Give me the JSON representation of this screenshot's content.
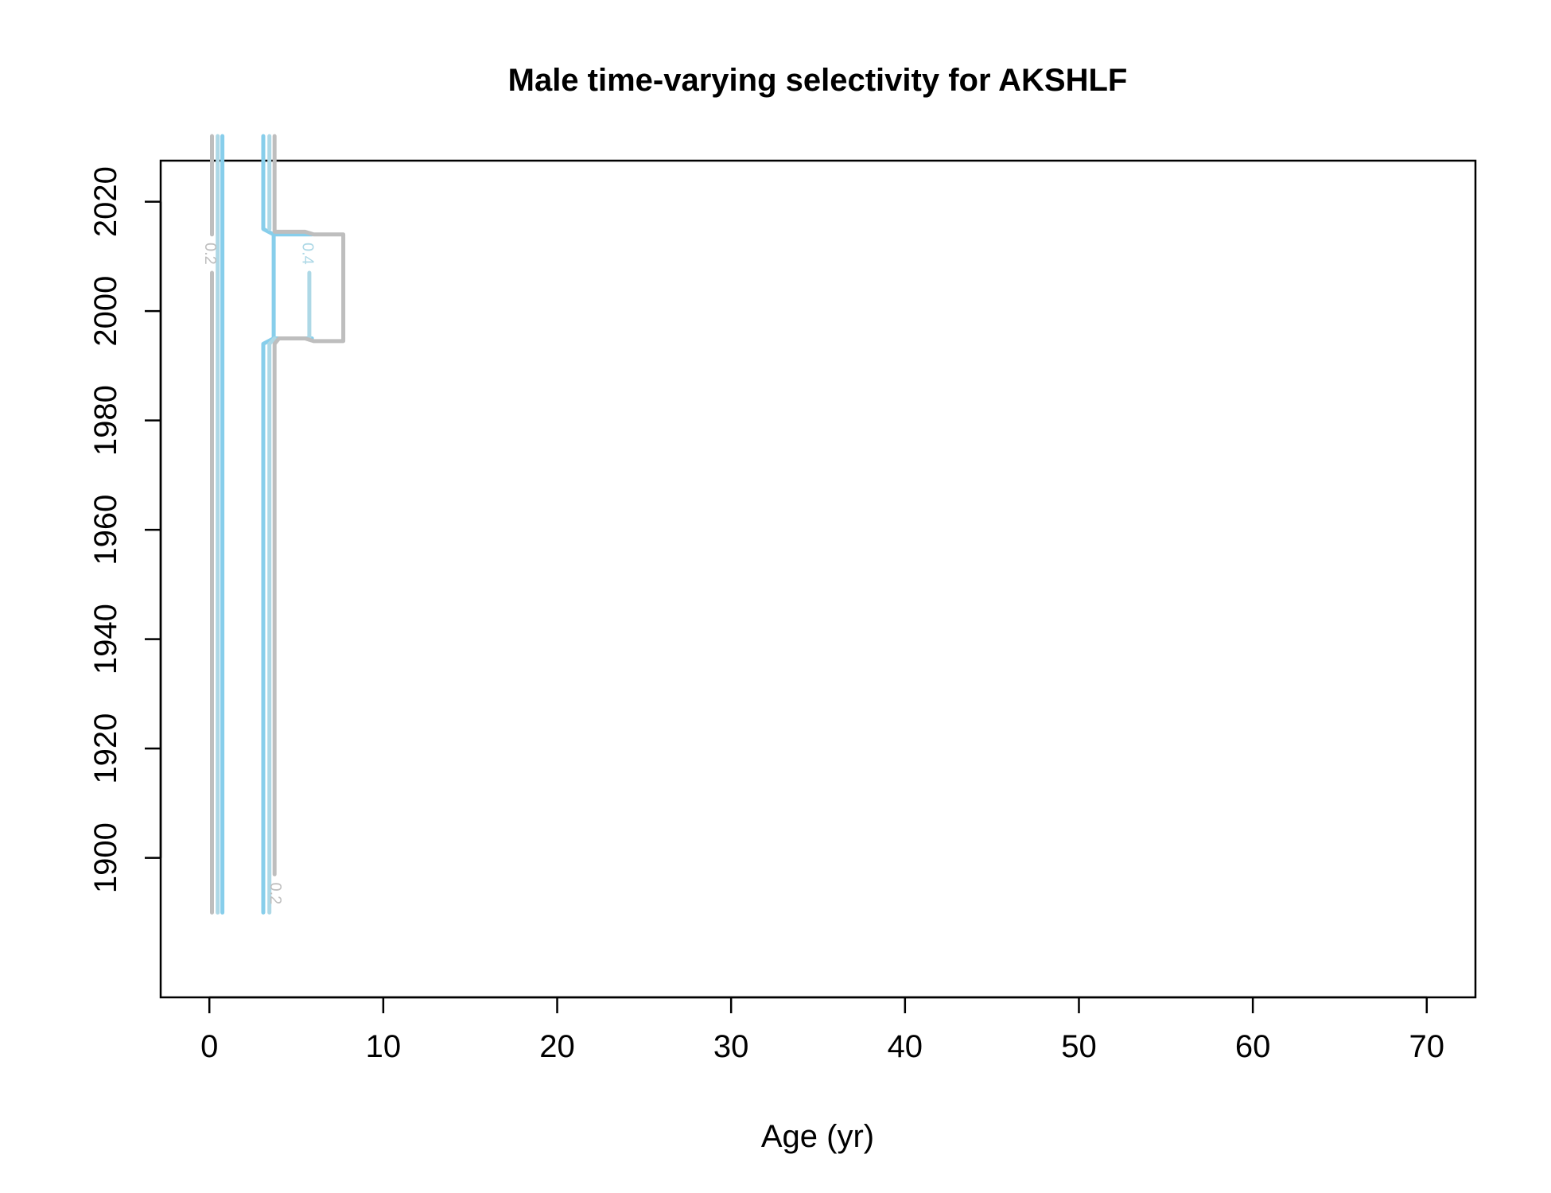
{
  "chart_data": {
    "type": "line",
    "title": "Male time-varying selectivity for AKSHLF",
    "xlabel": "Age (yr)",
    "ylabel": "",
    "xlim": [
      -2.8,
      72.8
    ],
    "ylim": [
      1874.5,
      2027.5
    ],
    "x_ticks": [
      0,
      10,
      20,
      30,
      40,
      50,
      60,
      70
    ],
    "y_ticks": [
      1900,
      1920,
      1940,
      1960,
      1980,
      2000,
      2020
    ],
    "grid": false,
    "legend": "none",
    "colors": {
      "grey": "#bebebe",
      "lightblue": "#add8e6",
      "skyblue": "#87ceeb"
    },
    "series": [
      {
        "color": "grey",
        "width": 5,
        "points": [
          [
            0.15,
            1890
          ],
          [
            0.15,
            2007
          ]
        ]
      },
      {
        "color": "grey",
        "width": 5,
        "points": [
          [
            0.15,
            2014
          ],
          [
            0.15,
            2032
          ]
        ]
      },
      {
        "color": "lightblue",
        "width": 5,
        "points": [
          [
            0.48,
            1890
          ],
          [
            0.48,
            2032
          ]
        ]
      },
      {
        "color": "skyblue",
        "width": 5,
        "points": [
          [
            0.75,
            1890
          ],
          [
            0.75,
            2032
          ]
        ]
      },
      {
        "color": "skyblue",
        "width": 5,
        "points": [
          [
            3.1,
            1890
          ],
          [
            3.1,
            1994
          ],
          [
            3.7,
            1995
          ],
          [
            5.9,
            1995
          ]
        ]
      },
      {
        "color": "skyblue",
        "width": 5,
        "points": [
          [
            3.1,
            2032
          ],
          [
            3.1,
            2015
          ],
          [
            3.7,
            2014
          ],
          [
            5.9,
            2014
          ]
        ]
      },
      {
        "color": "skyblue",
        "width": 5,
        "points": [
          [
            3.7,
            1995
          ],
          [
            3.7,
            2014
          ]
        ]
      },
      {
        "color": "lightblue",
        "width": 5,
        "points": [
          [
            3.45,
            1890
          ],
          [
            3.45,
            1994
          ],
          [
            3.75,
            1995
          ]
        ]
      },
      {
        "color": "lightblue",
        "width": 5,
        "points": [
          [
            3.45,
            2032
          ],
          [
            3.45,
            2015
          ]
        ]
      },
      {
        "color": "lightblue",
        "width": 5,
        "points": [
          [
            5.75,
            1995
          ],
          [
            5.75,
            2007
          ]
        ]
      },
      {
        "color": "grey",
        "width": 5,
        "points": [
          [
            3.75,
            1897
          ],
          [
            3.75,
            1994
          ],
          [
            4.0,
            1995
          ],
          [
            5.5,
            1995
          ],
          [
            6.0,
            1994.5
          ],
          [
            7.7,
            1994.5
          ],
          [
            7.7,
            2014
          ],
          [
            6.0,
            2014
          ],
          [
            5.5,
            2014.5
          ],
          [
            3.75,
            2014.5
          ],
          [
            3.75,
            2032
          ]
        ]
      }
    ],
    "contour_labels": [
      {
        "text": "0.2",
        "x": 0.0,
        "y": 2010.5,
        "color": "grey"
      },
      {
        "text": "0.4",
        "x": 5.6,
        "y": 2010.5,
        "color": "lightblue"
      },
      {
        "text": "0.2",
        "x": 3.75,
        "y": 1893.5,
        "color": "grey"
      }
    ]
  }
}
